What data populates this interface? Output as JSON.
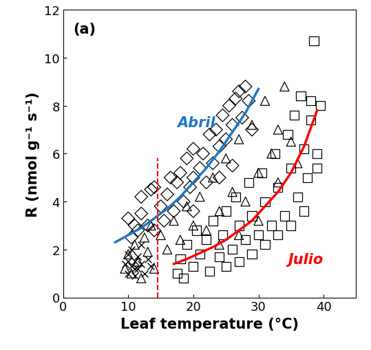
{
  "chart_data": {
    "type": "scatter",
    "xlabel": "Leaf temperature (°C)",
    "ylabel": "R (nmol g⁻¹ s⁻¹)",
    "xlim": [
      0,
      45
    ],
    "xticks": [
      0,
      10,
      20,
      30,
      40
    ],
    "ylim": [
      0,
      12
    ],
    "yticks": [
      0,
      2,
      4,
      6,
      8,
      10,
      12
    ],
    "grid": false,
    "annotations": [
      {
        "text": "(a)",
        "x": 1.5,
        "y": 11.2,
        "color": "#000000"
      },
      {
        "text": "Abril",
        "x": 17.5,
        "y": 7.3,
        "color": "#1F77C8"
      },
      {
        "text": "Julio",
        "x": 34.5,
        "y": 1.6,
        "color": "#FF0000"
      }
    ],
    "series": [
      {
        "type": "scatter",
        "marker": "diamond",
        "color": "#000000",
        "x": [
          10,
          10.5,
          11,
          11.5,
          12,
          12,
          13,
          13.5,
          14,
          14,
          15,
          15.5,
          16,
          16.5,
          17,
          17.5,
          18,
          18.5,
          19,
          19.5,
          20,
          20,
          21,
          21.5,
          22,
          22.5,
          23,
          23.5,
          24,
          24.5,
          25,
          25.5,
          26,
          26.5,
          27,
          27.5,
          28,
          28.5,
          29,
          26,
          24,
          20
        ],
        "values": [
          3.3,
          2.5,
          3.0,
          2.8,
          3.5,
          4.2,
          3.0,
          4.5,
          4.6,
          2.8,
          3.8,
          3.2,
          4.3,
          5.0,
          3.6,
          4.8,
          5.2,
          4.0,
          5.8,
          4.6,
          6.2,
          5.0,
          5.4,
          6.0,
          4.8,
          6.8,
          5.6,
          7.0,
          6.3,
          7.6,
          6.6,
          8.0,
          7.2,
          8.3,
          8.6,
          7.5,
          8.8,
          8.2,
          7.0,
          5.5,
          5.0,
          3.6
        ]
      },
      {
        "type": "scatter",
        "marker": "triangle",
        "color": "#000000",
        "x": [
          9.5,
          10,
          10.5,
          11,
          11.5,
          12,
          12.5,
          13,
          13.5,
          14,
          15,
          16,
          17,
          18,
          19,
          20,
          21,
          22,
          23,
          24,
          25,
          26,
          27,
          28,
          29,
          30,
          31,
          32,
          33,
          34,
          35,
          36,
          30,
          27,
          24,
          33
        ],
        "values": [
          1.2,
          1.8,
          1.0,
          2.2,
          1.5,
          0.8,
          2.5,
          1.9,
          3.0,
          1.2,
          2.6,
          2.0,
          3.2,
          2.4,
          3.8,
          3.0,
          4.2,
          2.8,
          5.0,
          3.6,
          5.8,
          4.4,
          6.6,
          4.0,
          7.2,
          5.2,
          8.2,
          6.0,
          7.0,
          8.8,
          6.5,
          5.6,
          3.2,
          2.6,
          2.2,
          4.8
        ]
      },
      {
        "type": "scatter",
        "marker": "square",
        "color": "#000000",
        "x": [
          17.5,
          18,
          18.5,
          19,
          20,
          20.5,
          21,
          22,
          22.5,
          23,
          24,
          24.5,
          25,
          26,
          26.5,
          27,
          28,
          28.5,
          29,
          30,
          30.5,
          31,
          32,
          32.5,
          33,
          34,
          34.5,
          35,
          35.5,
          36,
          36.5,
          37,
          37.5,
          38,
          38.5,
          38,
          39,
          39.5,
          39,
          37,
          35,
          33,
          31,
          29,
          27,
          25
        ],
        "values": [
          1.0,
          1.6,
          0.8,
          2.2,
          1.3,
          2.8,
          1.8,
          2.4,
          1.1,
          3.2,
          1.7,
          2.6,
          3.6,
          2.0,
          4.2,
          3.0,
          2.4,
          4.8,
          3.4,
          2.6,
          5.2,
          4.0,
          3.0,
          6.0,
          4.6,
          3.4,
          6.8,
          5.4,
          7.6,
          4.2,
          8.4,
          6.2,
          5.0,
          7.4,
          10.7,
          8.2,
          6.0,
          8.0,
          5.4,
          3.6,
          3.0,
          2.6,
          2.2,
          1.8,
          1.5,
          1.3
        ]
      },
      {
        "type": "scatter",
        "marker": "x",
        "color": "#000000",
        "x": [
          9.5,
          10,
          10,
          10.5,
          10.5,
          11,
          11,
          11.5,
          11.5,
          12,
          12,
          12.5,
          13,
          13.5,
          10,
          11
        ],
        "values": [
          1.4,
          1.0,
          1.8,
          1.3,
          2.0,
          1.5,
          0.9,
          1.7,
          1.2,
          1.4,
          2.2,
          1.0,
          1.6,
          1.3,
          1.5,
          1.2
        ]
      },
      {
        "type": "line",
        "line_style": "solid",
        "color": "#1F77C8",
        "x": [
          8,
          10,
          12,
          14,
          16,
          18,
          20,
          22,
          24,
          26,
          28,
          30
        ],
        "values": [
          2.3,
          2.6,
          2.9,
          3.3,
          3.7,
          4.2,
          4.8,
          5.4,
          6.1,
          6.9,
          7.7,
          8.7
        ]
      },
      {
        "type": "line",
        "line_style": "solid",
        "color": "#FF0000",
        "x": [
          17,
          19,
          21,
          23,
          25,
          27,
          29,
          31,
          33,
          35,
          37,
          39
        ],
        "values": [
          1.4,
          1.6,
          1.85,
          2.1,
          2.4,
          2.8,
          3.2,
          3.8,
          4.4,
          5.2,
          6.3,
          7.8
        ]
      },
      {
        "type": "line",
        "line_style": "dashed",
        "color": "#FF0000",
        "x": [
          14.5,
          14.5
        ],
        "values": [
          0,
          5.8
        ]
      }
    ]
  }
}
